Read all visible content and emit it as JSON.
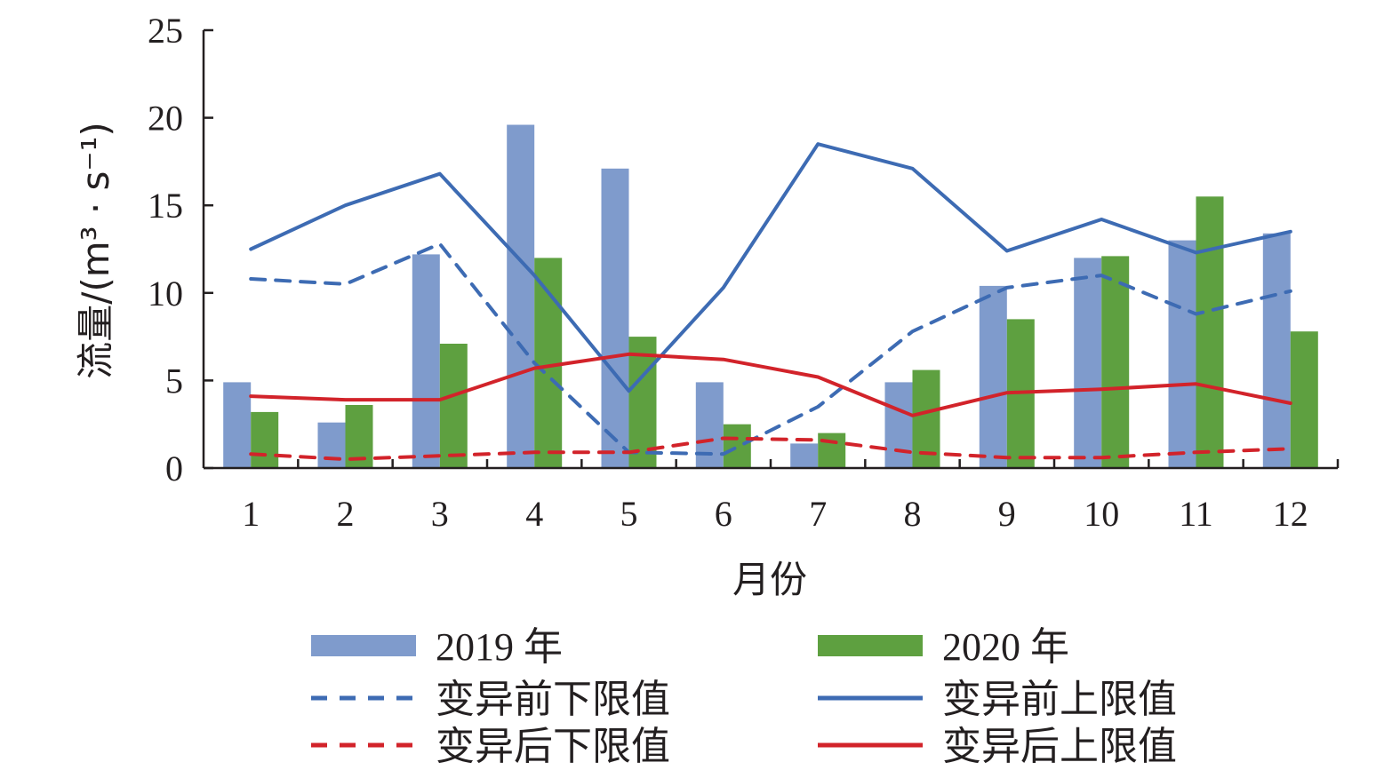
{
  "chart_data": {
    "type": "bar",
    "categories": [
      "1",
      "2",
      "3",
      "4",
      "5",
      "6",
      "7",
      "8",
      "9",
      "10",
      "11",
      "12"
    ],
    "xlabel": "月份",
    "ylabel": "流量/(m³ · s⁻¹)",
    "ylim": [
      0,
      25
    ],
    "yticks": [
      "0",
      "5",
      "10",
      "15",
      "20",
      "25"
    ],
    "grid": false,
    "legend_position": "bottom",
    "bar_series": [
      {
        "name": "2019 年",
        "color": "#7f9bcc",
        "values": [
          4.9,
          2.6,
          12.2,
          19.6,
          17.1,
          4.9,
          1.4,
          4.9,
          10.4,
          12.0,
          13.0,
          13.4
        ]
      },
      {
        "name": "2020 年",
        "color": "#5ea040",
        "values": [
          3.2,
          3.6,
          7.1,
          12.0,
          7.5,
          2.5,
          2.0,
          5.6,
          8.5,
          12.1,
          15.5,
          7.8
        ]
      }
    ],
    "line_series": [
      {
        "name": "变异前下限值",
        "color": "#3d6bb3",
        "dash": true,
        "values": [
          10.8,
          10.5,
          12.8,
          6.0,
          0.9,
          0.8,
          3.5,
          7.8,
          10.3,
          11.0,
          8.8,
          10.1
        ]
      },
      {
        "name": "变异前上限值",
        "color": "#3d6bb3",
        "dash": false,
        "values": [
          12.5,
          15.0,
          16.8,
          11.0,
          4.4,
          10.3,
          18.5,
          17.1,
          12.4,
          14.2,
          12.3,
          13.5
        ]
      },
      {
        "name": "变异后下限值",
        "color": "#d2232a",
        "dash": true,
        "values": [
          0.8,
          0.5,
          0.7,
          0.9,
          0.9,
          1.7,
          1.6,
          0.9,
          0.6,
          0.6,
          0.9,
          1.1
        ]
      },
      {
        "name": "变异后上限值",
        "color": "#d2232a",
        "dash": false,
        "values": [
          4.1,
          3.9,
          3.9,
          5.7,
          6.5,
          6.2,
          5.2,
          3.0,
          4.3,
          4.5,
          4.8,
          3.7
        ]
      }
    ],
    "legend_order": [
      "2019 年",
      "2020 年",
      "变异前下限值",
      "变异前上限值",
      "变异后下限值",
      "变异后上限值"
    ]
  }
}
